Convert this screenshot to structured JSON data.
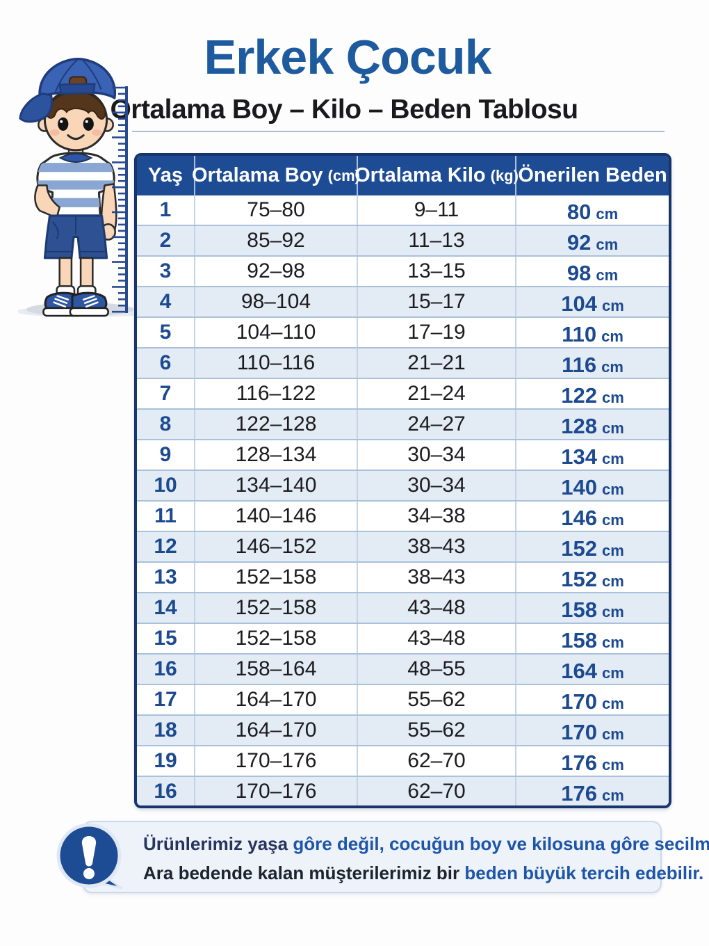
{
  "page": {
    "title": "Erkek Çocuk",
    "subtitle": "Ortalama Boy – Kilo – Beden Tablosu"
  },
  "table": {
    "headers": {
      "age": "Yaş",
      "height": "Ortalama Boy",
      "height_unit": "(cm)",
      "weight": "Ortalama Kilo",
      "weight_unit": "(kg)",
      "size": "Önerilen Beden"
    },
    "rows": [
      {
        "age": "1",
        "height": "75–80",
        "weight": "9–11",
        "size": "80",
        "unit": "cm"
      },
      {
        "age": "2",
        "height": "85–92",
        "weight": "11–13",
        "size": "92",
        "unit": "cm"
      },
      {
        "age": "3",
        "height": "92–98",
        "weight": "13–15",
        "size": "98",
        "unit": "cm"
      },
      {
        "age": "4",
        "height": "98–104",
        "weight": "15–17",
        "size": "104",
        "unit": "cm"
      },
      {
        "age": "5",
        "height": "104–110",
        "weight": "17–19",
        "size": "110",
        "unit": "cm"
      },
      {
        "age": "6",
        "height": "110–116",
        "weight": "21–21",
        "size": "116",
        "unit": "cm"
      },
      {
        "age": "7",
        "height": "116–122",
        "weight": "21–24",
        "size": "122",
        "unit": "cm"
      },
      {
        "age": "8",
        "height": "122–128",
        "weight": "24–27",
        "size": "128",
        "unit": "cm"
      },
      {
        "age": "9",
        "height": "128–134",
        "weight": "30–34",
        "size": "134",
        "unit": "cm"
      },
      {
        "age": "10",
        "height": "134–140",
        "weight": "30–34",
        "size": "140",
        "unit": "cm"
      },
      {
        "age": "11",
        "height": "140–146",
        "weight": "34–38",
        "size": "146",
        "unit": "cm"
      },
      {
        "age": "12",
        "height": "146–152",
        "weight": "38–43",
        "size": "152",
        "unit": "cm"
      },
      {
        "age": "13",
        "height": "152–158",
        "weight": "38–43",
        "size": "152",
        "unit": "cm"
      },
      {
        "age": "14",
        "height": "152–158",
        "weight": "43–48",
        "size": "158",
        "unit": "cm"
      },
      {
        "age": "15",
        "height": "152–158",
        "weight": "43–48",
        "size": "158",
        "unit": "cm"
      },
      {
        "age": "16",
        "height": "158–164",
        "weight": "48–55",
        "size": "164",
        "unit": "cm"
      },
      {
        "age": "17",
        "height": "164–170",
        "weight": "55–62",
        "size": "170",
        "unit": "cm"
      },
      {
        "age": "18",
        "height": "164–170",
        "weight": "55–62",
        "size": "170",
        "unit": "cm"
      },
      {
        "age": "19",
        "height": "170–176",
        "weight": "62–70",
        "size": "176",
        "unit": "cm"
      },
      {
        "age": "16",
        "height": "170–176",
        "weight": "62–70",
        "size": "176",
        "unit": "cm"
      }
    ]
  },
  "note": {
    "line1_dark": "Ürünlerimiz yaşa",
    "line1_blue": "gôre değil, cocuğun boy ve kilosuna gôre secilmelidir.",
    "line2_dark": "Ara bedende kalan müşterilerimiz bir",
    "line2_blue": "beden büyük tercih edebilir."
  },
  "colors": {
    "title_blue": "#1d5a9e",
    "header_blue": "#1d4b94",
    "table_border_navy": "#17356b",
    "accent_text_blue": "#1c4a90",
    "row_alt_blue": "#e3ebf4",
    "row_line_blue": "#a9c1db",
    "note_background": "#eef2f9",
    "note_blue": "#1d55a8",
    "note_navy": "#27355e",
    "body_text_dark": "#1c1c1f"
  }
}
